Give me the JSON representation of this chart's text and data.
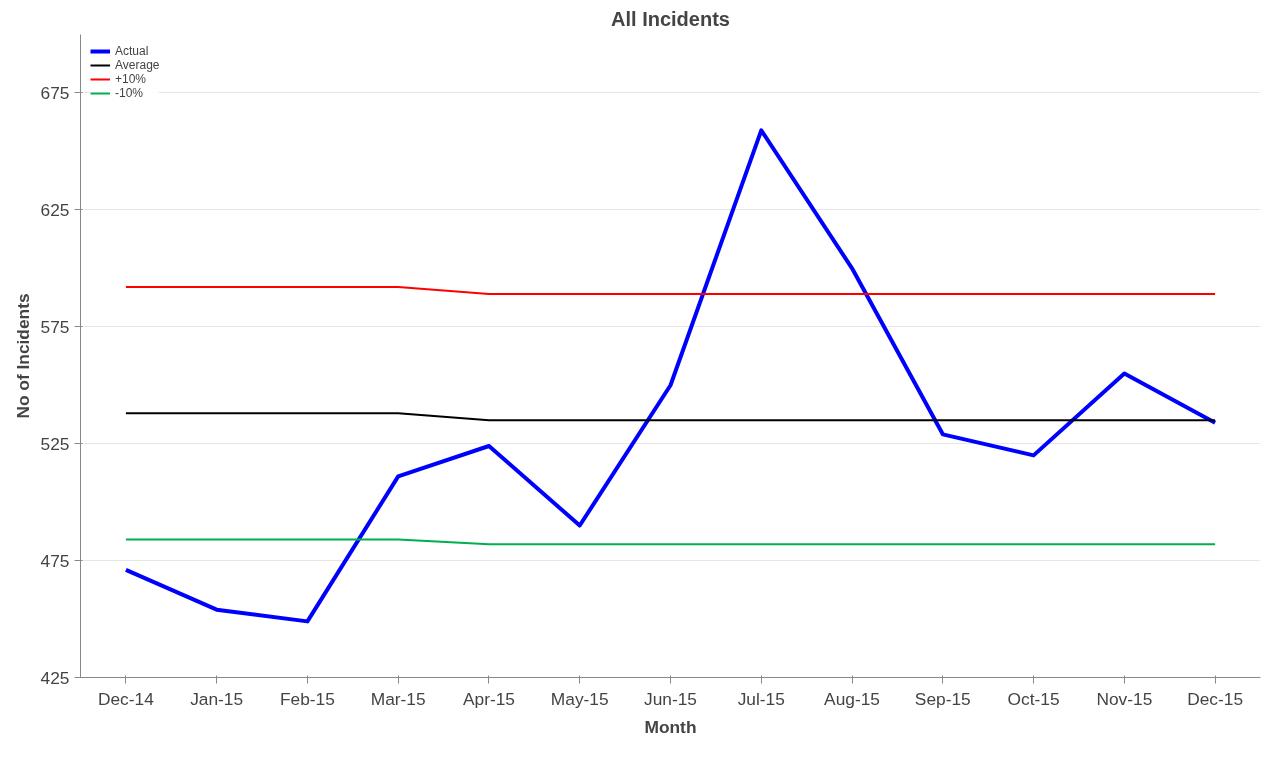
{
  "chart_data": {
    "type": "line",
    "title": "All Incidents",
    "xlabel": "Month",
    "ylabel": "No of Incidents",
    "categories": [
      "Dec-14",
      "Jan-15",
      "Feb-15",
      "Mar-15",
      "Apr-15",
      "May-15",
      "Jun-15",
      "Jul-15",
      "Aug-15",
      "Sep-15",
      "Oct-15",
      "Nov-15",
      "Dec-15"
    ],
    "series": [
      {
        "name": "Actual",
        "color": "#0000ff",
        "values": [
          471,
          454,
          449,
          511,
          524,
          490,
          550,
          659,
          600,
          529,
          520,
          555,
          534
        ]
      },
      {
        "name": "Average",
        "color": "#000000",
        "values": [
          538,
          538,
          538,
          538,
          535,
          535,
          535,
          535,
          535,
          535,
          535,
          535,
          535
        ]
      },
      {
        "name": "+10%",
        "color": "#ff0000",
        "values": [
          592,
          592,
          592,
          592,
          589,
          589,
          589,
          589,
          589,
          589,
          589,
          589,
          589
        ]
      },
      {
        "name": "-10%",
        "color": "#00b050",
        "values": [
          484,
          484,
          484,
          484,
          482,
          482,
          482,
          482,
          482,
          482,
          482,
          482,
          482
        ]
      }
    ],
    "ylim": [
      425,
      700
    ],
    "yticks": [
      425,
      475,
      525,
      575,
      625,
      675
    ],
    "grid": "y",
    "legend": "top left",
    "marker": "none",
    "line_style": "solid"
  }
}
